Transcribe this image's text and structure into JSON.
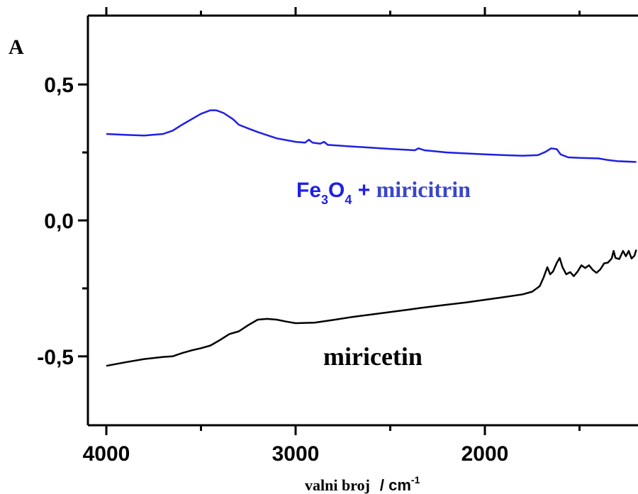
{
  "chart_data": {
    "type": "line",
    "panel_label": "A",
    "xlabel": {
      "main": "valni broj",
      "unit": "/ cm",
      "sup": "-1"
    },
    "xlim": [
      4000,
      1200
    ],
    "ylim": [
      -0.75,
      0.75
    ],
    "x_ticks": [
      {
        "value": 4000,
        "label": "4000"
      },
      {
        "value": 3000,
        "label": "3000"
      },
      {
        "value": 2000,
        "label": "2000"
      }
    ],
    "y_ticks": [
      {
        "value": 0.5,
        "label": "0,5"
      },
      {
        "value": 0.0,
        "label": "0,0"
      },
      {
        "value": -0.5,
        "label": "-0,5"
      }
    ],
    "series": [
      {
        "color": "#1f1fe6",
        "points": [
          [
            4000,
            0.318
          ],
          [
            3900,
            0.315
          ],
          [
            3800,
            0.312
          ],
          [
            3700,
            0.318
          ],
          [
            3650,
            0.33
          ],
          [
            3600,
            0.352
          ],
          [
            3550,
            0.372
          ],
          [
            3500,
            0.392
          ],
          [
            3450,
            0.405
          ],
          [
            3420,
            0.405
          ],
          [
            3380,
            0.395
          ],
          [
            3330,
            0.372
          ],
          [
            3300,
            0.352
          ],
          [
            3250,
            0.338
          ],
          [
            3200,
            0.325
          ],
          [
            3100,
            0.302
          ],
          [
            3000,
            0.289
          ],
          [
            2950,
            0.286
          ],
          [
            2930,
            0.297
          ],
          [
            2910,
            0.286
          ],
          [
            2870,
            0.282
          ],
          [
            2850,
            0.289
          ],
          [
            2830,
            0.278
          ],
          [
            2700,
            0.272
          ],
          [
            2500,
            0.263
          ],
          [
            2370,
            0.258
          ],
          [
            2350,
            0.265
          ],
          [
            2320,
            0.258
          ],
          [
            2200,
            0.25
          ],
          [
            2000,
            0.243
          ],
          [
            1900,
            0.24
          ],
          [
            1800,
            0.238
          ],
          [
            1720,
            0.24
          ],
          [
            1680,
            0.252
          ],
          [
            1650,
            0.265
          ],
          [
            1620,
            0.262
          ],
          [
            1600,
            0.243
          ],
          [
            1560,
            0.232
          ],
          [
            1500,
            0.23
          ],
          [
            1400,
            0.228
          ],
          [
            1350,
            0.222
          ],
          [
            1300,
            0.218
          ],
          [
            1200,
            0.215
          ]
        ]
      },
      {
        "color": "#000000",
        "points": [
          [
            4000,
            -0.535
          ],
          [
            3900,
            -0.522
          ],
          [
            3800,
            -0.51
          ],
          [
            3700,
            -0.502
          ],
          [
            3650,
            -0.5
          ],
          [
            3600,
            -0.488
          ],
          [
            3550,
            -0.478
          ],
          [
            3500,
            -0.47
          ],
          [
            3450,
            -0.46
          ],
          [
            3400,
            -0.44
          ],
          [
            3350,
            -0.418
          ],
          [
            3300,
            -0.408
          ],
          [
            3250,
            -0.385
          ],
          [
            3200,
            -0.365
          ],
          [
            3150,
            -0.362
          ],
          [
            3100,
            -0.365
          ],
          [
            3050,
            -0.372
          ],
          [
            3000,
            -0.378
          ],
          [
            2900,
            -0.376
          ],
          [
            2800,
            -0.366
          ],
          [
            2700,
            -0.355
          ],
          [
            2600,
            -0.346
          ],
          [
            2500,
            -0.337
          ],
          [
            2400,
            -0.328
          ],
          [
            2340,
            -0.322
          ],
          [
            2200,
            -0.31
          ],
          [
            2100,
            -0.302
          ],
          [
            2000,
            -0.292
          ],
          [
            1900,
            -0.282
          ],
          [
            1800,
            -0.272
          ],
          [
            1750,
            -0.262
          ],
          [
            1710,
            -0.242
          ],
          [
            1690,
            -0.21
          ],
          [
            1670,
            -0.172
          ],
          [
            1655,
            -0.198
          ],
          [
            1640,
            -0.188
          ],
          [
            1620,
            -0.156
          ],
          [
            1605,
            -0.138
          ],
          [
            1590,
            -0.172
          ],
          [
            1570,
            -0.198
          ],
          [
            1550,
            -0.19
          ],
          [
            1530,
            -0.205
          ],
          [
            1510,
            -0.188
          ],
          [
            1490,
            -0.165
          ],
          [
            1470,
            -0.175
          ],
          [
            1450,
            -0.165
          ],
          [
            1430,
            -0.182
          ],
          [
            1410,
            -0.193
          ],
          [
            1390,
            -0.18
          ],
          [
            1370,
            -0.158
          ],
          [
            1350,
            -0.155
          ],
          [
            1330,
            -0.14
          ],
          [
            1320,
            -0.112
          ],
          [
            1310,
            -0.138
          ],
          [
            1290,
            -0.142
          ],
          [
            1270,
            -0.112
          ],
          [
            1255,
            -0.132
          ],
          [
            1240,
            -0.112
          ],
          [
            1225,
            -0.14
          ],
          [
            1210,
            -0.13
          ],
          [
            1200,
            -0.108
          ]
        ]
      }
    ],
    "annotations": {
      "blue": {
        "fe": "Fe",
        "sub3": "3",
        "o": "O",
        "sub4": "4",
        "plus": " + ",
        "compound": "miricitrin"
      },
      "black": "miricetin"
    }
  }
}
